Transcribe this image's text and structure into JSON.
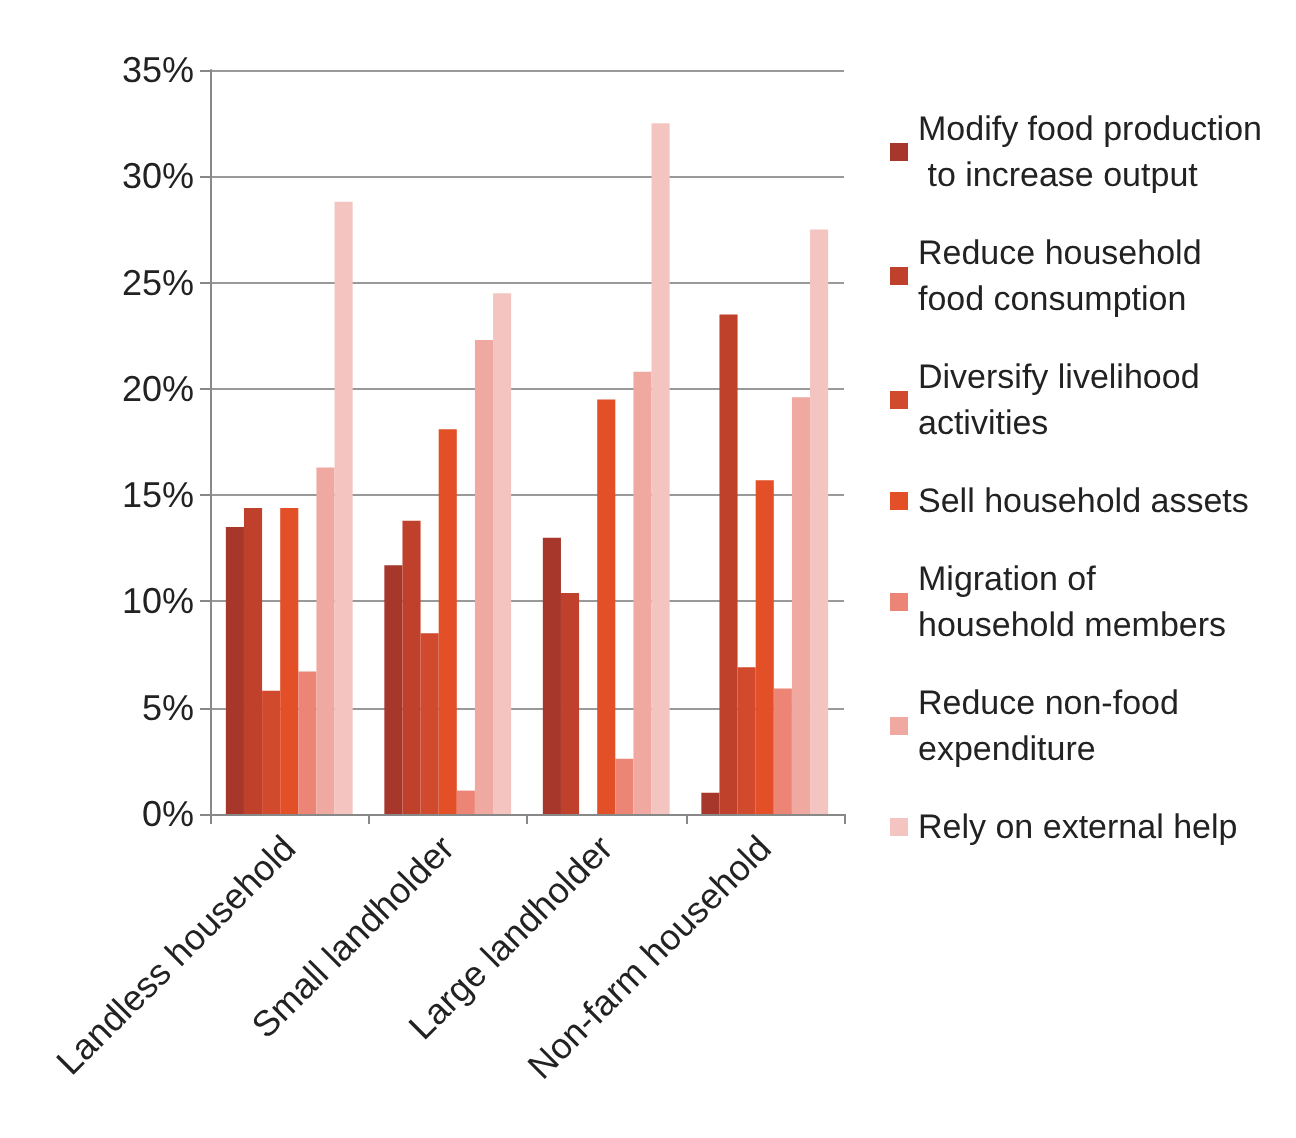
{
  "chart_data": {
    "type": "bar",
    "categories": [
      "Landless household",
      "Small landholder",
      "Large landholder",
      "Non-farm household"
    ],
    "series": [
      {
        "name": "Modify food production to increase output",
        "color": "#a6372a",
        "values": [
          13.5,
          11.7,
          13.0,
          1.0
        ]
      },
      {
        "name": "Reduce household food consumption",
        "color": "#c0412b",
        "values": [
          14.4,
          13.8,
          10.4,
          23.5
        ]
      },
      {
        "name": "Diversify livelihood activities",
        "color": "#d24a2d",
        "values": [
          5.8,
          8.5,
          0,
          6.9
        ]
      },
      {
        "name": "Sell household assets",
        "color": "#e35028",
        "values": [
          14.4,
          18.1,
          19.5,
          15.7
        ]
      },
      {
        "name": "Migration of household members",
        "color": "#ec8576",
        "values": [
          6.7,
          1.1,
          2.6,
          5.9
        ]
      },
      {
        "name": "Reduce non-food expenditure",
        "color": "#f0a9a1",
        "values": [
          16.3,
          22.3,
          20.8,
          19.6
        ]
      },
      {
        "name": "Rely on external help",
        "color": "#f4c5c0",
        "values": [
          28.8,
          24.5,
          32.5,
          27.5
        ]
      }
    ],
    "ylim": [
      0,
      35
    ],
    "yticks": [
      {
        "value": 0,
        "label": "0%"
      },
      {
        "value": 5,
        "label": "5%"
      },
      {
        "value": 10,
        "label": "10%"
      },
      {
        "value": 15,
        "label": "15%"
      },
      {
        "value": 20,
        "label": "20%"
      },
      {
        "value": 25,
        "label": "25%"
      },
      {
        "value": 30,
        "label": "30%"
      },
      {
        "value": 35,
        "label": "35%"
      }
    ],
    "grid": "y",
    "legend": "right"
  }
}
